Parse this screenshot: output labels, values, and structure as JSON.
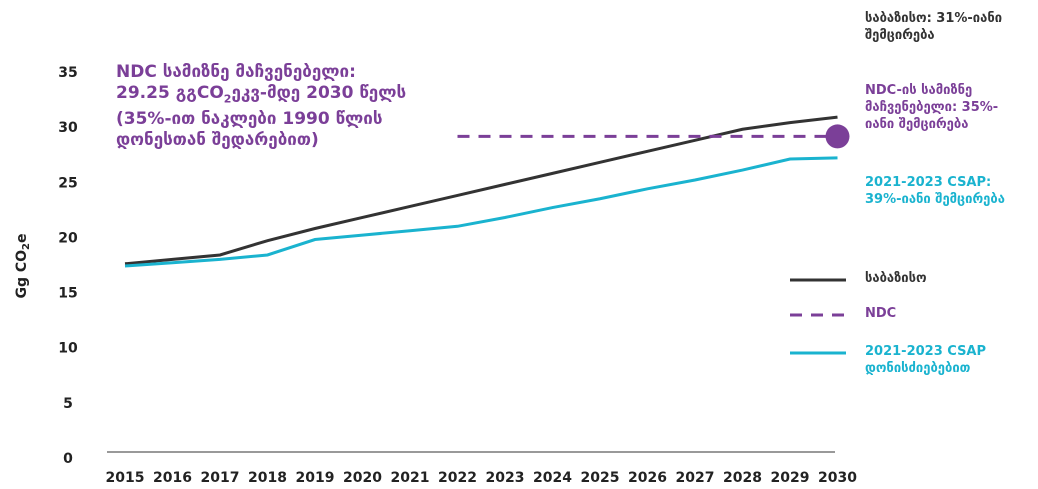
{
  "chart_data": {
    "type": "line",
    "y_label_parts": [
      "Gg CO",
      "2",
      "e"
    ],
    "categories": [
      "2015",
      "2016",
      "2017",
      "2018",
      "2019",
      "2020",
      "2021",
      "2022",
      "2023",
      "2024",
      "2025",
      "2026",
      "2027",
      "2028",
      "2029",
      "2030"
    ],
    "series": [
      {
        "name": "საბაზისო",
        "color": "#333333",
        "dashed": false,
        "values": [
          17.7,
          18.1,
          18.5,
          19.8,
          20.9,
          21.9,
          22.9,
          23.9,
          24.9,
          25.9,
          26.9,
          27.9,
          28.9,
          29.9,
          30.5,
          31.0
        ]
      },
      {
        "name": "NDC",
        "color": "#7b3f98",
        "dashed": true,
        "end_marker": true,
        "values": [
          null,
          null,
          null,
          null,
          null,
          null,
          null,
          29.25,
          29.25,
          29.25,
          29.25,
          29.25,
          29.25,
          29.25,
          29.25,
          29.25
        ]
      },
      {
        "name": "2021-2023 CSAP დონისძიებებით",
        "color": "#1ab3cf",
        "dashed": false,
        "values": [
          17.5,
          17.8,
          18.1,
          18.5,
          19.9,
          20.3,
          20.7,
          21.1,
          21.9,
          22.8,
          23.6,
          24.5,
          25.3,
          26.2,
          27.2,
          27.3
        ]
      }
    ],
    "ylim": [
      0,
      35
    ],
    "yticks": [
      0,
      5,
      10,
      15,
      20,
      25,
      30,
      35
    ],
    "annotation_left": {
      "line1": "NDC სამიზნე მაჩვენებელი:",
      "line2_parts": [
        "29.25 გგCO",
        "2",
        "ეკვ-მდე 2030 წელს"
      ],
      "line3": "(35%-ით ნაკლები 1990 წლის დონესთან შედარებით)"
    },
    "annotations_right": [
      {
        "text": "საბაზისო: 31%-იანი შემცირება",
        "color": "#333333"
      },
      {
        "text": "NDC-ის სამიზნე მაჩვენებელი: 35%-იანი შემცირება",
        "color": "#7b3f98"
      },
      {
        "text": "2021-2023 CSAP: 39%-იანი შემცირება",
        "color": "#1ab3cf"
      }
    ]
  }
}
